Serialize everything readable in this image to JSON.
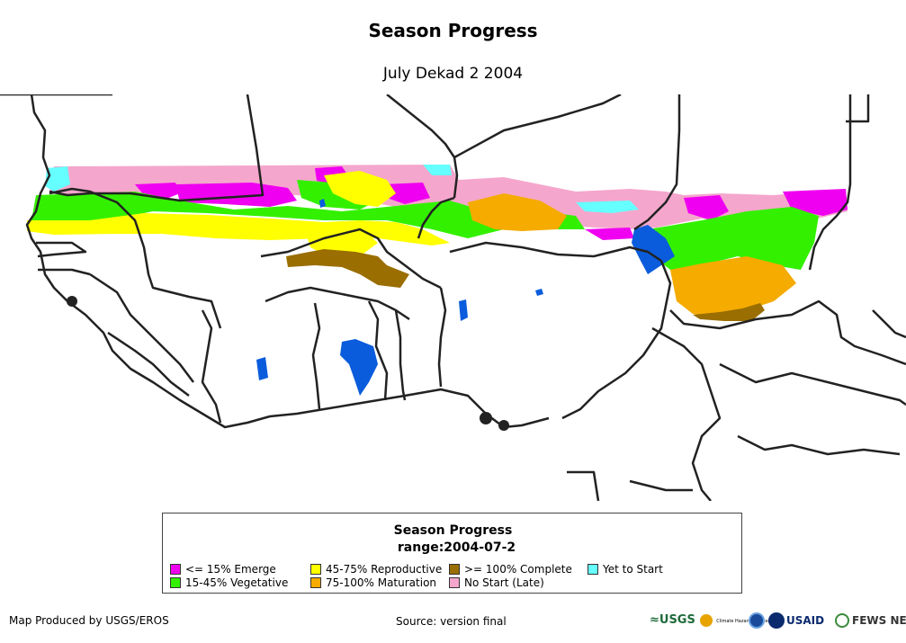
{
  "title": "Season Progress",
  "subtitle": "July Dekad 2 2004",
  "legend": {
    "title": "Season Progress",
    "range": "range:2004-07-2",
    "items": [
      {
        "label": "<= 15% Emerge",
        "color": "#f000f0"
      },
      {
        "label": "15-45% Vegetative",
        "color": "#33f000"
      },
      {
        "label": "45-75% Reproductive",
        "color": "#ffff00"
      },
      {
        "label": "75-100% Maturation",
        "color": "#f5ab00"
      },
      {
        "label": ">= 100% Complete",
        "color": "#9a6e00"
      },
      {
        "label": "No Start (Late)",
        "color": "#f5a6cc"
      },
      {
        "label": "Yet to Start",
        "color": "#66ffff"
      }
    ]
  },
  "water_color": "#0a5cdc",
  "footer": {
    "produced_by": "Map Produced by USGS/EROS",
    "source": "Source: version final"
  },
  "logos": {
    "usgs": "≈USGS",
    "chc": "Climate Hazards Center",
    "usaid": "USAID",
    "fews": "FEWS NET"
  }
}
